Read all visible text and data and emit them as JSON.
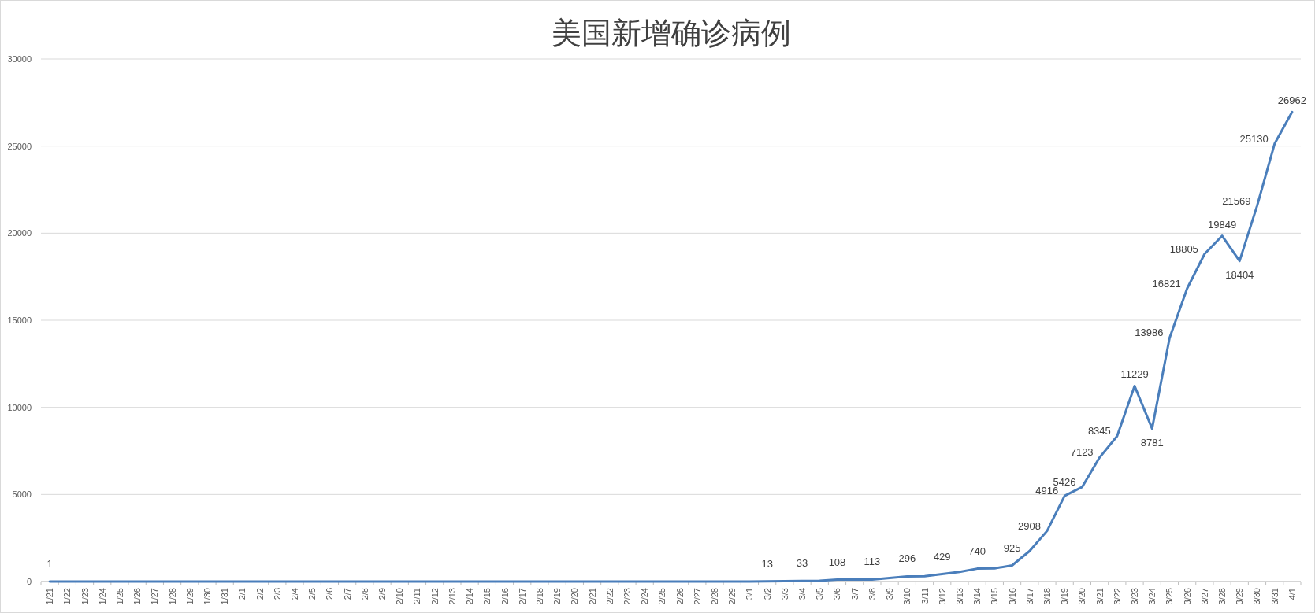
{
  "chart_data": {
    "type": "line",
    "title": "美国新增确诊病例",
    "categories": [
      "1/21",
      "1/22",
      "1/23",
      "1/24",
      "1/25",
      "1/26",
      "1/27",
      "1/28",
      "1/29",
      "1/30",
      "1/31",
      "2/1",
      "2/2",
      "2/3",
      "2/4",
      "2/5",
      "2/6",
      "2/7",
      "2/8",
      "2/9",
      "2/10",
      "2/11",
      "2/12",
      "2/13",
      "2/14",
      "2/15",
      "2/16",
      "2/17",
      "2/18",
      "2/19",
      "2/20",
      "2/21",
      "2/22",
      "2/23",
      "2/24",
      "2/25",
      "2/26",
      "2/27",
      "2/28",
      "2/29",
      "3/1",
      "3/2",
      "3/3",
      "3/4",
      "3/5",
      "3/6",
      "3/7",
      "3/8",
      "3/9",
      "3/10",
      "3/11",
      "3/12",
      "3/13",
      "3/14",
      "3/15",
      "3/16",
      "3/17",
      "3/18",
      "3/19",
      "3/20",
      "3/21",
      "3/22",
      "3/23",
      "3/24",
      "3/25",
      "3/26",
      "3/27",
      "3/28",
      "3/29",
      "3/30",
      "3/31",
      "4/1"
    ],
    "series": [
      {
        "color": "#4a7ebb",
        "values": [
          1,
          0,
          0,
          0,
          0,
          0,
          0,
          0,
          0,
          0,
          0,
          0,
          0,
          0,
          0,
          0,
          0,
          0,
          0,
          0,
          0,
          0,
          0,
          0,
          0,
          0,
          0,
          0,
          0,
          0,
          0,
          0,
          0,
          0,
          0,
          0,
          0,
          0,
          0,
          0,
          0,
          13,
          20,
          33,
          50,
          108,
          110,
          113,
          200,
          296,
          300,
          429,
          550,
          740,
          760,
          925,
          1750,
          2908,
          4916,
          5426,
          7123,
          8345,
          11229,
          8781,
          13986,
          16821,
          18805,
          19849,
          18404,
          21569,
          25130,
          26962
        ],
        "value_labels": [
          "1",
          null,
          null,
          null,
          null,
          null,
          null,
          null,
          null,
          null,
          null,
          null,
          null,
          null,
          null,
          null,
          null,
          null,
          null,
          null,
          null,
          null,
          null,
          null,
          null,
          null,
          null,
          null,
          null,
          null,
          null,
          null,
          null,
          null,
          null,
          null,
          null,
          null,
          null,
          null,
          null,
          "13",
          null,
          "33",
          null,
          "108",
          null,
          "113",
          null,
          "296",
          null,
          "429",
          null,
          "740",
          null,
          "925",
          null,
          "2908",
          "4916",
          "5426",
          "7123",
          "8345",
          "11229",
          "8781",
          "13986",
          "16821",
          "18805",
          "19849",
          "18404",
          "21569",
          "25130",
          "26962"
        ]
      }
    ],
    "ylim": [
      0,
      30000
    ],
    "yticks": [
      0,
      5000,
      10000,
      15000,
      20000,
      25000,
      30000
    ],
    "grid": "y"
  }
}
